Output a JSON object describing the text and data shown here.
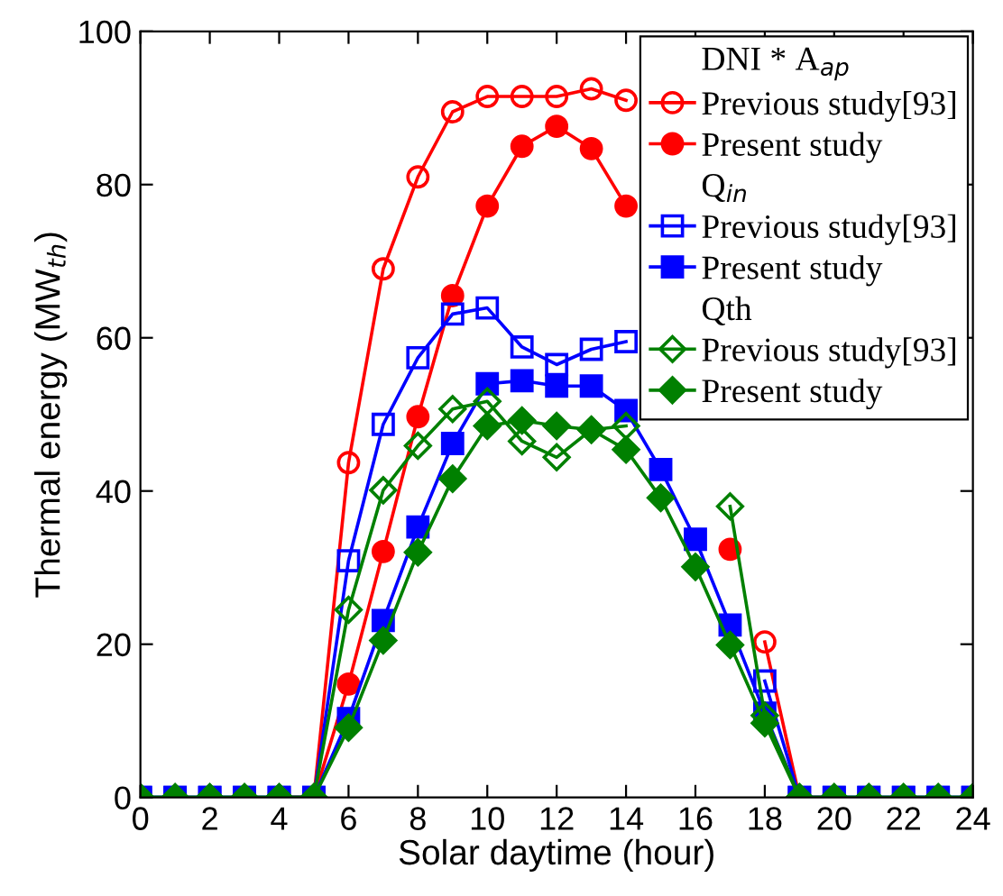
{
  "chart_data": {
    "type": "line",
    "xlabel": "Solar daytime (hour)",
    "ylabel": "Thermal energy (MW$_{th}$)",
    "x": [
      0,
      1,
      2,
      3,
      4,
      5,
      6,
      7,
      8,
      9,
      10,
      11,
      12,
      13,
      14,
      15,
      16,
      17,
      18,
      19,
      20,
      21,
      22,
      23,
      24
    ],
    "xlim": [
      0,
      24
    ],
    "xticks": [
      0,
      2,
      4,
      6,
      8,
      10,
      12,
      14,
      16,
      18,
      20,
      22,
      24
    ],
    "ylim": [
      0,
      100
    ],
    "yticks": [
      0,
      20,
      40,
      60,
      80,
      100
    ],
    "legend": "top right",
    "annotations": [
      "DNI * A$_{ap}$",
      "Q$_{in}$",
      "Qth"
    ],
    "series": [
      {
        "name": "Previous study[93]",
        "color": "#ff0000",
        "marker": "circle",
        "values": [
          null,
          null,
          null,
          null,
          0,
          0,
          43.7,
          69.0,
          81.0,
          89.5,
          91.5,
          91.5,
          91.5,
          92.5,
          91.0,
          null,
          null,
          null,
          20.3,
          0,
          0,
          null,
          null,
          null,
          null
        ]
      },
      {
        "name": "Present study",
        "color": "#ff0000",
        "marker": "circle",
        "values": [
          null,
          null,
          null,
          null,
          0,
          0,
          14.8,
          32.1,
          49.7,
          65.5,
          77.2,
          85.0,
          87.6,
          84.7,
          77.2,
          null,
          null,
          32.4,
          null,
          null,
          null,
          null,
          null,
          null,
          null
        ]
      },
      {
        "name": "Previous study[93]",
        "color": "#0000ff",
        "marker": "square",
        "values": [
          0,
          0,
          0,
          0,
          0,
          0,
          30.9,
          48.7,
          57.4,
          63.1,
          63.9,
          58.8,
          56.5,
          58.5,
          59.5,
          null,
          null,
          null,
          15.2,
          0,
          0,
          0,
          0,
          0,
          0
        ]
      },
      {
        "name": "Present study",
        "color": "#0000ff",
        "marker": "square",
        "values": [
          0,
          0,
          0,
          0,
          0,
          0,
          10.3,
          23.1,
          35.3,
          46.2,
          54.0,
          54.4,
          53.7,
          53.7,
          50.5,
          42.8,
          33.7,
          22.5,
          11.0,
          0,
          0,
          0,
          0,
          0,
          0
        ]
      },
      {
        "name": "Previous study[93]",
        "color": "#008000",
        "marker": "diamond",
        "values": [
          0,
          0,
          0,
          0,
          0,
          0,
          24.5,
          40.1,
          45.9,
          50.7,
          51.7,
          46.5,
          44.4,
          48.0,
          48.5,
          null,
          null,
          38.0,
          10.7,
          0,
          0,
          0,
          0,
          0,
          0
        ]
      },
      {
        "name": "Present study",
        "color": "#008000",
        "marker": "diamond",
        "values": [
          0,
          0,
          0,
          0,
          0,
          0,
          9.1,
          20.5,
          32.0,
          41.6,
          48.5,
          49.2,
          48.5,
          48.0,
          45.4,
          39.1,
          30.1,
          19.9,
          9.7,
          0,
          0,
          0,
          0,
          0,
          0
        ]
      }
    ]
  }
}
